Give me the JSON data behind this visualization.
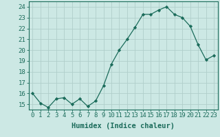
{
  "x": [
    0,
    1,
    2,
    3,
    4,
    5,
    6,
    7,
    8,
    9,
    10,
    11,
    12,
    13,
    14,
    15,
    16,
    17,
    18,
    19,
    20,
    21,
    22,
    23
  ],
  "y": [
    16.0,
    15.1,
    14.7,
    15.5,
    15.6,
    15.0,
    15.5,
    14.8,
    15.3,
    16.7,
    18.7,
    20.0,
    21.0,
    22.1,
    23.3,
    23.3,
    23.7,
    24.0,
    23.3,
    23.0,
    22.2,
    20.5,
    19.1,
    19.5
  ],
  "line_color": "#1a6b5a",
  "marker": "D",
  "marker_size": 2.2,
  "bg_color": "#cce8e4",
  "grid_color": "#b0ceca",
  "xlabel": "Humidex (Indice chaleur)",
  "xlabel_fontsize": 7.5,
  "ylabel_ticks": [
    15,
    16,
    17,
    18,
    19,
    20,
    21,
    22,
    23,
    24
  ],
  "xlim": [
    -0.5,
    23.5
  ],
  "ylim": [
    14.5,
    24.5
  ],
  "tick_fontsize": 6.5,
  "tick_color": "#1a6b5a",
  "spine_color": "#1a6b5a",
  "linewidth": 0.9
}
